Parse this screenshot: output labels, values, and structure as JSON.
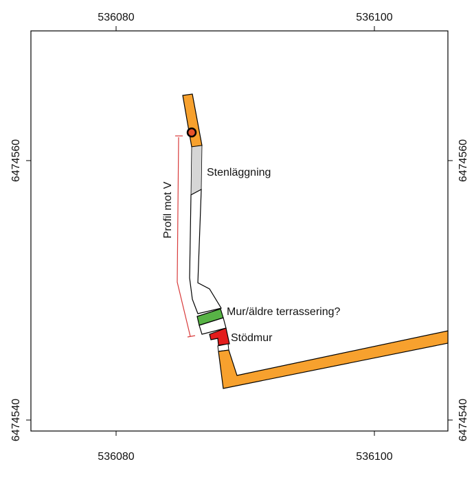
{
  "axes": {
    "x_ticks": [
      "536080",
      "536100"
    ],
    "y_ticks": [
      "6474560",
      "6474540"
    ]
  },
  "labels": {
    "paving": "Stenläggning",
    "wall_terrace": "Mur/äldre terrassering?",
    "retaining_wall": "Stödmur",
    "profile": "Profil mot V"
  },
  "colors": {
    "trench": "#f7a12e",
    "paving": "#d6d6d6",
    "wall_terrace": "#58b346",
    "retaining_wall": "#e31d1d",
    "profile_line": "#d83a3a",
    "marker_fill": "#e8532a",
    "outline": "#000000"
  }
}
